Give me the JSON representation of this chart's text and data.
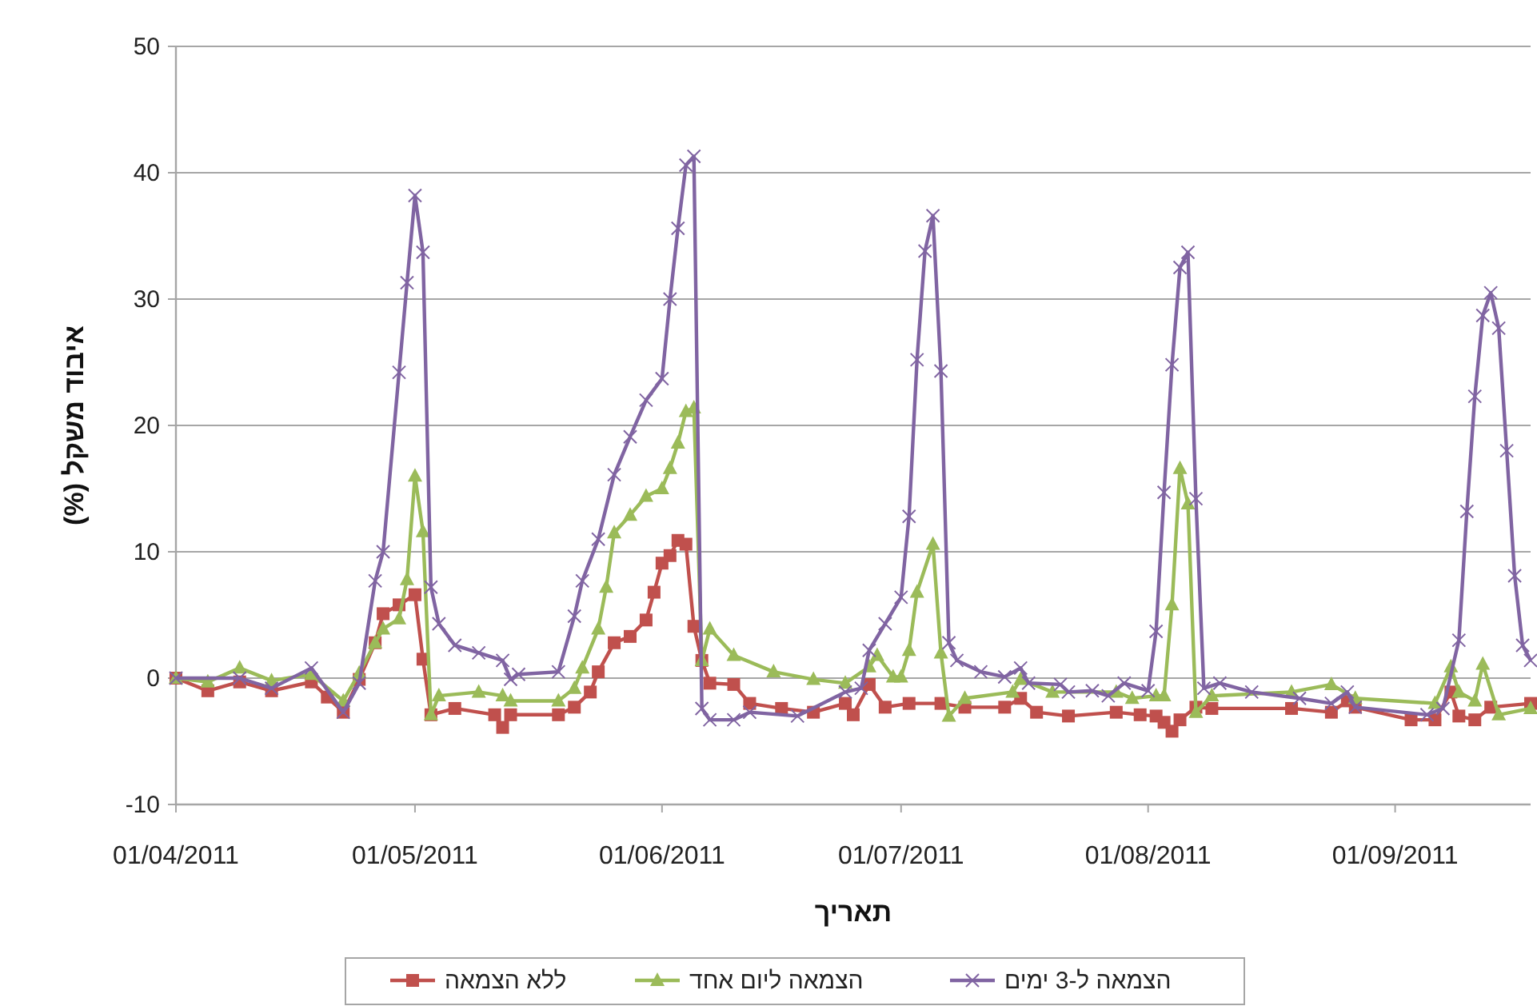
{
  "chart_data": {
    "type": "line",
    "xlabel": "תאריך",
    "ylabel": "איבוד משקל (%)",
    "xlim": [
      "2011-04-01",
      "2011-09-18"
    ],
    "xticks": [
      {
        "value": "2011-04-01",
        "label": "01/04/2011"
      },
      {
        "value": "2011-05-01",
        "label": "01/05/2011"
      },
      {
        "value": "2011-06-01",
        "label": "01/06/2011"
      },
      {
        "value": "2011-07-01",
        "label": "01/07/2011"
      },
      {
        "value": "2011-08-01",
        "label": "01/08/2011"
      },
      {
        "value": "2011-09-01",
        "label": "01/09/2011"
      }
    ],
    "ylim": [
      -10,
      50
    ],
    "yticks": [
      -10,
      0,
      10,
      20,
      30,
      40,
      50
    ],
    "grid": "y",
    "legend": "bottom",
    "line_style": "solid",
    "series": [
      {
        "name": "ללא הצמאה",
        "color": "#c0504d",
        "marker": "square",
        "x": [
          "2011-04-01",
          "2011-04-05",
          "2011-04-09",
          "2011-04-13",
          "2011-04-18",
          "2011-04-20",
          "2011-04-22",
          "2011-04-24",
          "2011-04-26",
          "2011-04-27",
          "2011-04-29",
          "2011-05-01",
          "2011-05-02",
          "2011-05-03",
          "2011-05-06",
          "2011-05-11",
          "2011-05-12",
          "2011-05-13",
          "2011-05-19",
          "2011-05-21",
          "2011-05-23",
          "2011-05-24",
          "2011-05-26",
          "2011-05-28",
          "2011-05-30",
          "2011-05-31",
          "2011-06-01",
          "2011-06-02",
          "2011-06-03",
          "2011-06-04",
          "2011-06-05",
          "2011-06-06",
          "2011-06-07",
          "2011-06-10",
          "2011-06-12",
          "2011-06-16",
          "2011-06-20",
          "2011-06-24",
          "2011-06-25",
          "2011-06-27",
          "2011-06-29",
          "2011-07-02",
          "2011-07-06",
          "2011-07-09",
          "2011-07-14",
          "2011-07-16",
          "2011-07-18",
          "2011-07-22",
          "2011-07-28",
          "2011-07-31",
          "2011-08-02",
          "2011-08-03",
          "2011-08-04",
          "2011-08-05",
          "2011-08-07",
          "2011-08-09",
          "2011-08-19",
          "2011-08-24",
          "2011-08-26",
          "2011-08-27",
          "2011-09-03",
          "2011-09-06",
          "2011-09-08",
          "2011-09-09",
          "2011-09-11",
          "2011-09-13",
          "2011-09-18"
        ],
        "values": [
          0,
          -1,
          -0.3,
          -1,
          -0.3,
          -1.5,
          -2.7,
          -0.1,
          2.8,
          5.1,
          5.8,
          6.6,
          1.5,
          -2.9,
          -2.4,
          -2.9,
          -3.9,
          -2.9,
          -2.9,
          -2.3,
          -1.1,
          0.5,
          2.8,
          3.3,
          4.6,
          6.8,
          9.1,
          9.7,
          10.9,
          10.6,
          4.1,
          1.4,
          -0.4,
          -0.5,
          -2,
          -2.4,
          -2.7,
          -2,
          -2.9,
          -0.5,
          -2.3,
          -2,
          -2,
          -2.3,
          -2.3,
          -1.6,
          -2.7,
          -3,
          -2.7,
          -2.9,
          -3,
          -3.5,
          -4.2,
          -3.3,
          -2.3,
          -2.4,
          -2.4,
          -2.7,
          -1.8,
          -2.3,
          -3.3,
          -3.3,
          -1.1,
          -3,
          -3.3,
          -2.3,
          -2
        ]
      },
      {
        "name": "הצמאה ליום אחד",
        "color": "#9bbb59",
        "marker": "triangle",
        "x": [
          "2011-04-01",
          "2011-04-05",
          "2011-04-09",
          "2011-04-13",
          "2011-04-18",
          "2011-04-22",
          "2011-04-24",
          "2011-04-26",
          "2011-04-27",
          "2011-04-29",
          "2011-04-30",
          "2011-05-01",
          "2011-05-02",
          "2011-05-03",
          "2011-05-04",
          "2011-05-09",
          "2011-05-12",
          "2011-05-13",
          "2011-05-19",
          "2011-05-21",
          "2011-05-22",
          "2011-05-24",
          "2011-05-25",
          "2011-05-26",
          "2011-05-28",
          "2011-05-30",
          "2011-06-01",
          "2011-06-02",
          "2011-06-03",
          "2011-06-04",
          "2011-06-05",
          "2011-06-06",
          "2011-06-07",
          "2011-06-10",
          "2011-06-15",
          "2011-06-20",
          "2011-06-24",
          "2011-06-27",
          "2011-06-28",
          "2011-06-30",
          "2011-07-01",
          "2011-07-02",
          "2011-07-03",
          "2011-07-05",
          "2011-07-06",
          "2011-07-07",
          "2011-07-09",
          "2011-07-15",
          "2011-07-16",
          "2011-07-20",
          "2011-07-28",
          "2011-07-30",
          "2011-08-02",
          "2011-08-03",
          "2011-08-04",
          "2011-08-05",
          "2011-08-06",
          "2011-08-07",
          "2011-08-09",
          "2011-08-19",
          "2011-08-24",
          "2011-08-27",
          "2011-09-06",
          "2011-09-08",
          "2011-09-09",
          "2011-09-11",
          "2011-09-12",
          "2011-09-14",
          "2011-09-18"
        ],
        "values": [
          0,
          -0.3,
          0.8,
          -0.2,
          0.3,
          -1.8,
          0.4,
          2.8,
          3.9,
          4.7,
          7.8,
          16,
          11.6,
          -2.9,
          -1.4,
          -1.1,
          -1.4,
          -1.8,
          -1.8,
          -0.8,
          0.8,
          3.9,
          7.2,
          11.5,
          12.9,
          14.4,
          15,
          16.6,
          18.6,
          21.1,
          21.4,
          1.4,
          3.9,
          1.8,
          0.5,
          -0.1,
          -0.4,
          0.9,
          1.8,
          0.1,
          0.1,
          2.2,
          6.8,
          10.6,
          2,
          -3,
          -1.6,
          -1.1,
          -0.1,
          -1.1,
          -1.1,
          -1.6,
          -1.4,
          -1.4,
          5.8,
          16.6,
          13.8,
          -2.7,
          -1.4,
          -1.1,
          -0.5,
          -1.6,
          -2,
          0.9,
          -1.1,
          -1.8,
          1.1,
          -2.9,
          -2.4
        ]
      },
      {
        "name": "הצמאה ל-3 ימים",
        "color": "#8064a2",
        "marker": "cross",
        "x": [
          "2011-04-01",
          "2011-04-09",
          "2011-04-13",
          "2011-04-18",
          "2011-04-22",
          "2011-04-24",
          "2011-04-26",
          "2011-04-27",
          "2011-04-29",
          "2011-04-30",
          "2011-05-01",
          "2011-05-02",
          "2011-05-03",
          "2011-05-04",
          "2011-05-06",
          "2011-05-09",
          "2011-05-12",
          "2011-05-13",
          "2011-05-14",
          "2011-05-19",
          "2011-05-21",
          "2011-05-22",
          "2011-05-24",
          "2011-05-26",
          "2011-05-28",
          "2011-05-30",
          "2011-06-01",
          "2011-06-02",
          "2011-06-03",
          "2011-06-04",
          "2011-06-05",
          "2011-06-06",
          "2011-06-07",
          "2011-06-10",
          "2011-06-12",
          "2011-06-18",
          "2011-06-24",
          "2011-06-26",
          "2011-06-27",
          "2011-06-29",
          "2011-07-01",
          "2011-07-02",
          "2011-07-03",
          "2011-07-04",
          "2011-07-05",
          "2011-07-06",
          "2011-07-07",
          "2011-07-08",
          "2011-07-11",
          "2011-07-14",
          "2011-07-16",
          "2011-07-17",
          "2011-07-21",
          "2011-07-22",
          "2011-07-25",
          "2011-07-27",
          "2011-07-29",
          "2011-08-01",
          "2011-08-02",
          "2011-08-03",
          "2011-08-04",
          "2011-08-05",
          "2011-08-06",
          "2011-08-07",
          "2011-08-08",
          "2011-08-10",
          "2011-08-14",
          "2011-08-20",
          "2011-08-24",
          "2011-08-26",
          "2011-08-27",
          "2011-09-05",
          "2011-09-07",
          "2011-09-09",
          "2011-09-10",
          "2011-09-11",
          "2011-09-12",
          "2011-09-13",
          "2011-09-14",
          "2011-09-15",
          "2011-09-16",
          "2011-09-17",
          "2011-09-18"
        ],
        "values": [
          0,
          0,
          -0.8,
          0.8,
          -2.7,
          -0.4,
          7.7,
          10,
          24.2,
          31.3,
          38.2,
          33.7,
          7.2,
          4.3,
          2.6,
          2,
          1.4,
          -0.1,
          0.3,
          0.5,
          4.9,
          7.7,
          11,
          16.1,
          19.1,
          22,
          23.7,
          30,
          35.6,
          40.6,
          41.3,
          -2.4,
          -3.3,
          -3.3,
          -2.7,
          -3,
          -1.1,
          -0.8,
          2.2,
          4.3,
          6.4,
          12.8,
          25.2,
          33.8,
          36.6,
          24.3,
          2.8,
          1.4,
          0.5,
          0.1,
          0.8,
          -0.4,
          -0.5,
          -1.1,
          -1,
          -1.4,
          -0.4,
          -1,
          3.7,
          14.7,
          24.8,
          32.5,
          33.7,
          14.2,
          -0.8,
          -0.4,
          -1.1,
          -1.6,
          -2,
          -1.1,
          -2.3,
          -2.9,
          -2.4,
          3,
          13.2,
          22.3,
          28.7,
          30.5,
          27.7,
          18,
          8.1,
          2.6,
          1.4
        ]
      }
    ]
  }
}
